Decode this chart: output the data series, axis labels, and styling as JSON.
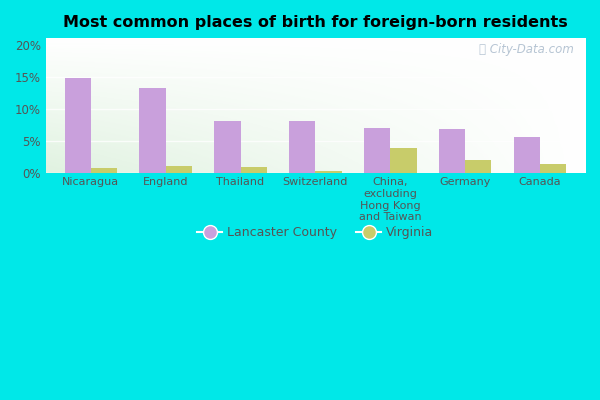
{
  "title": "Most common places of birth for foreign-born residents",
  "categories": [
    "Nicaragua",
    "England",
    "Thailand",
    "Switzerland",
    "China,\nexcluding\nHong Kong\nand Taiwan",
    "Germany",
    "Canada"
  ],
  "lancaster_values": [
    14.8,
    13.2,
    8.0,
    8.0,
    7.0,
    6.8,
    5.6
  ],
  "virginia_values": [
    0.7,
    1.1,
    0.8,
    0.2,
    3.9,
    1.9,
    1.4
  ],
  "lancaster_color": "#c9a0dc",
  "virginia_color": "#c8cc6a",
  "yticks": [
    0,
    5,
    10,
    15,
    20
  ],
  "ylabels": [
    "0%",
    "5%",
    "10%",
    "15%",
    "20%"
  ],
  "ylim": [
    0,
    21
  ],
  "legend_lancaster": "Lancaster County",
  "legend_virginia": "Virginia",
  "bar_width": 0.35,
  "background_color_fig": "#00e8e8",
  "watermark": "City-Data.com"
}
